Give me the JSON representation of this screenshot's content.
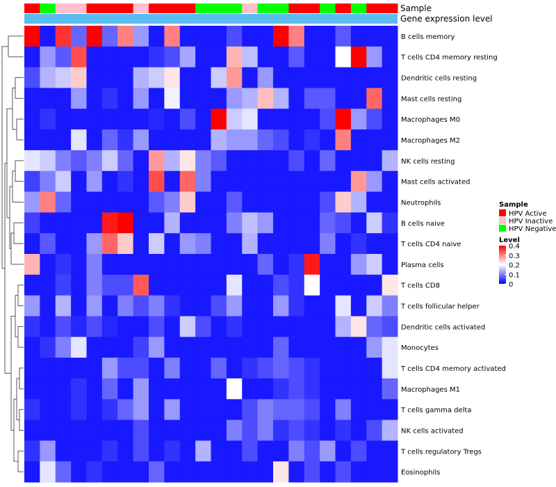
{
  "chart_data": {
    "type": "heatmap",
    "title": "",
    "xlabel": "",
    "ylabel": "",
    "annotations": [
      {
        "name": "Sample",
        "kind": "categorical"
      },
      {
        "name": "Gene expression level",
        "kind": "continuous"
      }
    ],
    "sample_groups": [
      "HPV Active",
      "HPV Negative",
      "HPV Inactive",
      "HPV Inactive",
      "HPV Active",
      "HPV Active",
      "HPV Active",
      "HPV Inactive",
      "HPV Active",
      "HPV Active",
      "HPV Active",
      "HPV Negative",
      "HPV Negative",
      "HPV Negative",
      "HPV Inactive",
      "HPV Negative",
      "HPV Negative",
      "HPV Active",
      "HPV Active",
      "HPV Negative",
      "HPV Active",
      "HPV Negative",
      "HPV Active",
      "HPV Active"
    ],
    "rows": [
      "B cells memory",
      "T cells CD4 memory resting",
      "Dendritic cells resting",
      "Mast cells resting",
      "Macrophages M0",
      "Macrophages M2",
      "NK cells resting",
      "Mast cells activated",
      "Neutrophils",
      "B cells naive",
      "T cells CD4 naive",
      "Plasma cells",
      "T cells CD8",
      "T cells follicular helper",
      "Dendritic cells activated",
      "Monocytes",
      "T cells CD4 memory activated",
      "Macrophages M1",
      "T cells gamma delta",
      "NK cells activated",
      "T cells regulatory  Tregs",
      "Eosinophils"
    ],
    "values": [
      [
        0.4,
        0.02,
        0.36,
        0.08,
        0.4,
        0.08,
        0.3,
        0.12,
        0.02,
        0.3,
        0.02,
        0.02,
        0.02,
        0.06,
        0.02,
        0.02,
        0.4,
        0.3,
        0.02,
        0.02,
        0.07,
        0.02,
        0.02,
        0.02
      ],
      [
        0.02,
        0.12,
        0.07,
        0.34,
        0.02,
        0.02,
        0.02,
        0.02,
        0.04,
        0.06,
        0.13,
        0.02,
        0.02,
        0.26,
        0.15,
        0.02,
        0.02,
        0.07,
        0.02,
        0.02,
        0.2,
        0.4,
        0.12,
        0.02
      ],
      [
        0.06,
        0.14,
        0.16,
        0.24,
        0.02,
        0.02,
        0.02,
        0.14,
        0.16,
        0.22,
        0.02,
        0.02,
        0.16,
        0.28,
        0.02,
        0.12,
        0.02,
        0.02,
        0.02,
        0.02,
        0.02,
        0.02,
        0.02,
        0.02
      ],
      [
        0.02,
        0.02,
        0.02,
        0.12,
        0.02,
        0.04,
        0.02,
        0.12,
        0.02,
        0.19,
        0.02,
        0.02,
        0.02,
        0.12,
        0.14,
        0.25,
        0.14,
        0.02,
        0.07,
        0.07,
        0.02,
        0.02,
        0.32,
        0.02
      ],
      [
        0.02,
        0.04,
        0.02,
        0.02,
        0.02,
        0.02,
        0.02,
        0.02,
        0.03,
        0.02,
        0.06,
        0.02,
        0.4,
        0.16,
        0.18,
        0.02,
        0.02,
        0.02,
        0.02,
        0.06,
        0.4,
        0.12,
        0.06,
        0.02
      ],
      [
        0.02,
        0.02,
        0.02,
        0.18,
        0.02,
        0.08,
        0.04,
        0.12,
        0.02,
        0.02,
        0.02,
        0.02,
        0.14,
        0.12,
        0.12,
        0.08,
        0.06,
        0.02,
        0.04,
        0.02,
        0.3,
        0.02,
        0.02,
        0.02
      ],
      [
        0.18,
        0.16,
        0.1,
        0.07,
        0.1,
        0.16,
        0.08,
        0.02,
        0.28,
        0.14,
        0.22,
        0.1,
        0.07,
        0.02,
        0.02,
        0.02,
        0.02,
        0.06,
        0.02,
        0.08,
        0.02,
        0.02,
        0.02,
        0.14
      ],
      [
        0.05,
        0.1,
        0.16,
        0.02,
        0.12,
        0.02,
        0.04,
        0.02,
        0.34,
        0.02,
        0.32,
        0.1,
        0.02,
        0.02,
        0.02,
        0.02,
        0.02,
        0.02,
        0.02,
        0.02,
        0.02,
        0.28,
        0.12,
        0.02
      ],
      [
        0.12,
        0.3,
        0.08,
        0.02,
        0.02,
        0.02,
        0.02,
        0.02,
        0.07,
        0.1,
        0.24,
        0.02,
        0.02,
        0.07,
        0.02,
        0.02,
        0.02,
        0.02,
        0.02,
        0.06,
        0.24,
        0.14,
        0.02,
        0.02
      ],
      [
        0.05,
        0.02,
        0.02,
        0.02,
        0.02,
        0.38,
        0.4,
        0.02,
        0.02,
        0.14,
        0.02,
        0.02,
        0.02,
        0.1,
        0.15,
        0.12,
        0.02,
        0.02,
        0.02,
        0.08,
        0.06,
        0.02,
        0.16,
        0.04
      ],
      [
        0.02,
        0.07,
        0.02,
        0.02,
        0.12,
        0.32,
        0.24,
        0.02,
        0.16,
        0.02,
        0.12,
        0.1,
        0.02,
        0.02,
        0.14,
        0.02,
        0.02,
        0.02,
        0.02,
        0.1,
        0.02,
        0.04,
        0.02,
        0.02
      ],
      [
        0.26,
        0.02,
        0.04,
        0.02,
        0.1,
        0.02,
        0.02,
        0.02,
        0.02,
        0.02,
        0.02,
        0.02,
        0.02,
        0.02,
        0.02,
        0.08,
        0.02,
        0.04,
        0.38,
        0.02,
        0.02,
        0.12,
        0.16,
        0.02
      ],
      [
        0.02,
        0.02,
        0.05,
        0.02,
        0.1,
        0.06,
        0.06,
        0.33,
        0.02,
        0.02,
        0.02,
        0.02,
        0.02,
        0.18,
        0.02,
        0.02,
        0.06,
        0.04,
        0.2,
        0.02,
        0.02,
        0.02,
        0.02,
        0.22
      ],
      [
        0.12,
        0.02,
        0.14,
        0.02,
        0.12,
        0.02,
        0.1,
        0.06,
        0.1,
        0.04,
        0.02,
        0.02,
        0.06,
        0.12,
        0.02,
        0.02,
        0.12,
        0.04,
        0.02,
        0.02,
        0.18,
        0.02,
        0.16,
        0.1
      ],
      [
        0.04,
        0.02,
        0.06,
        0.03,
        0.06,
        0.03,
        0.02,
        0.02,
        0.06,
        0.02,
        0.16,
        0.06,
        0.02,
        0.04,
        0.02,
        0.02,
        0.02,
        0.02,
        0.02,
        0.02,
        0.14,
        0.22,
        0.08,
        0.06
      ],
      [
        0.02,
        0.04,
        0.1,
        0.18,
        0.02,
        0.02,
        0.02,
        0.05,
        0.12,
        0.02,
        0.02,
        0.02,
        0.02,
        0.02,
        0.02,
        0.02,
        0.08,
        0.02,
        0.02,
        0.02,
        0.02,
        0.02,
        0.12,
        0.18
      ],
      [
        0.02,
        0.02,
        0.02,
        0.02,
        0.02,
        0.12,
        0.06,
        0.06,
        0.02,
        0.1,
        0.02,
        0.02,
        0.08,
        0.02,
        0.04,
        0.06,
        0.08,
        0.06,
        0.04,
        0.02,
        0.02,
        0.02,
        0.02,
        0.18
      ],
      [
        0.02,
        0.02,
        0.02,
        0.04,
        0.02,
        0.08,
        0.02,
        0.12,
        0.02,
        0.02,
        0.02,
        0.02,
        0.02,
        0.2,
        0.02,
        0.02,
        0.04,
        0.06,
        0.04,
        0.02,
        0.02,
        0.02,
        0.02,
        0.08
      ],
      [
        0.04,
        0.02,
        0.02,
        0.04,
        0.02,
        0.04,
        0.08,
        0.12,
        0.02,
        0.12,
        0.02,
        0.02,
        0.02,
        0.02,
        0.06,
        0.1,
        0.08,
        0.08,
        0.06,
        0.02,
        0.1,
        0.02,
        0.02,
        0.02
      ],
      [
        0.02,
        0.02,
        0.02,
        0.02,
        0.02,
        0.02,
        0.02,
        0.06,
        0.02,
        0.02,
        0.02,
        0.02,
        0.02,
        0.1,
        0.06,
        0.1,
        0.04,
        0.06,
        0.04,
        0.02,
        0.04,
        0.02,
        0.06,
        0.14
      ],
      [
        0.04,
        0.12,
        0.02,
        0.02,
        0.02,
        0.04,
        0.02,
        0.06,
        0.02,
        0.04,
        0.02,
        0.14,
        0.02,
        0.02,
        0.06,
        0.02,
        0.02,
        0.1,
        0.06,
        0.12,
        0.02,
        0.06,
        0.02,
        0.02
      ],
      [
        0.02,
        0.18,
        0.08,
        0.02,
        0.04,
        0.02,
        0.02,
        0.02,
        0.08,
        0.02,
        0.02,
        0.02,
        0.02,
        0.02,
        0.02,
        0.02,
        0.22,
        0.02,
        0.06,
        0.02,
        0.06,
        0.02,
        0.02,
        0.02
      ]
    ],
    "legend_sample": {
      "title": "Sample",
      "entries": [
        {
          "label": "HPV Active",
          "color": "#ff0000"
        },
        {
          "label": "HPV Inactive",
          "color": "#ffc0cb"
        },
        {
          "label": "HPV Negative",
          "color": "#00ff00"
        }
      ]
    },
    "legend_level": {
      "title": "Level",
      "ticks": [
        "0.4",
        "0.3",
        "0.2",
        "0.1",
        "0"
      ],
      "range": [
        0,
        0.4
      ],
      "colors": {
        "low": "#0000ff",
        "mid": "#ffffff",
        "high": "#ff0000"
      }
    }
  }
}
